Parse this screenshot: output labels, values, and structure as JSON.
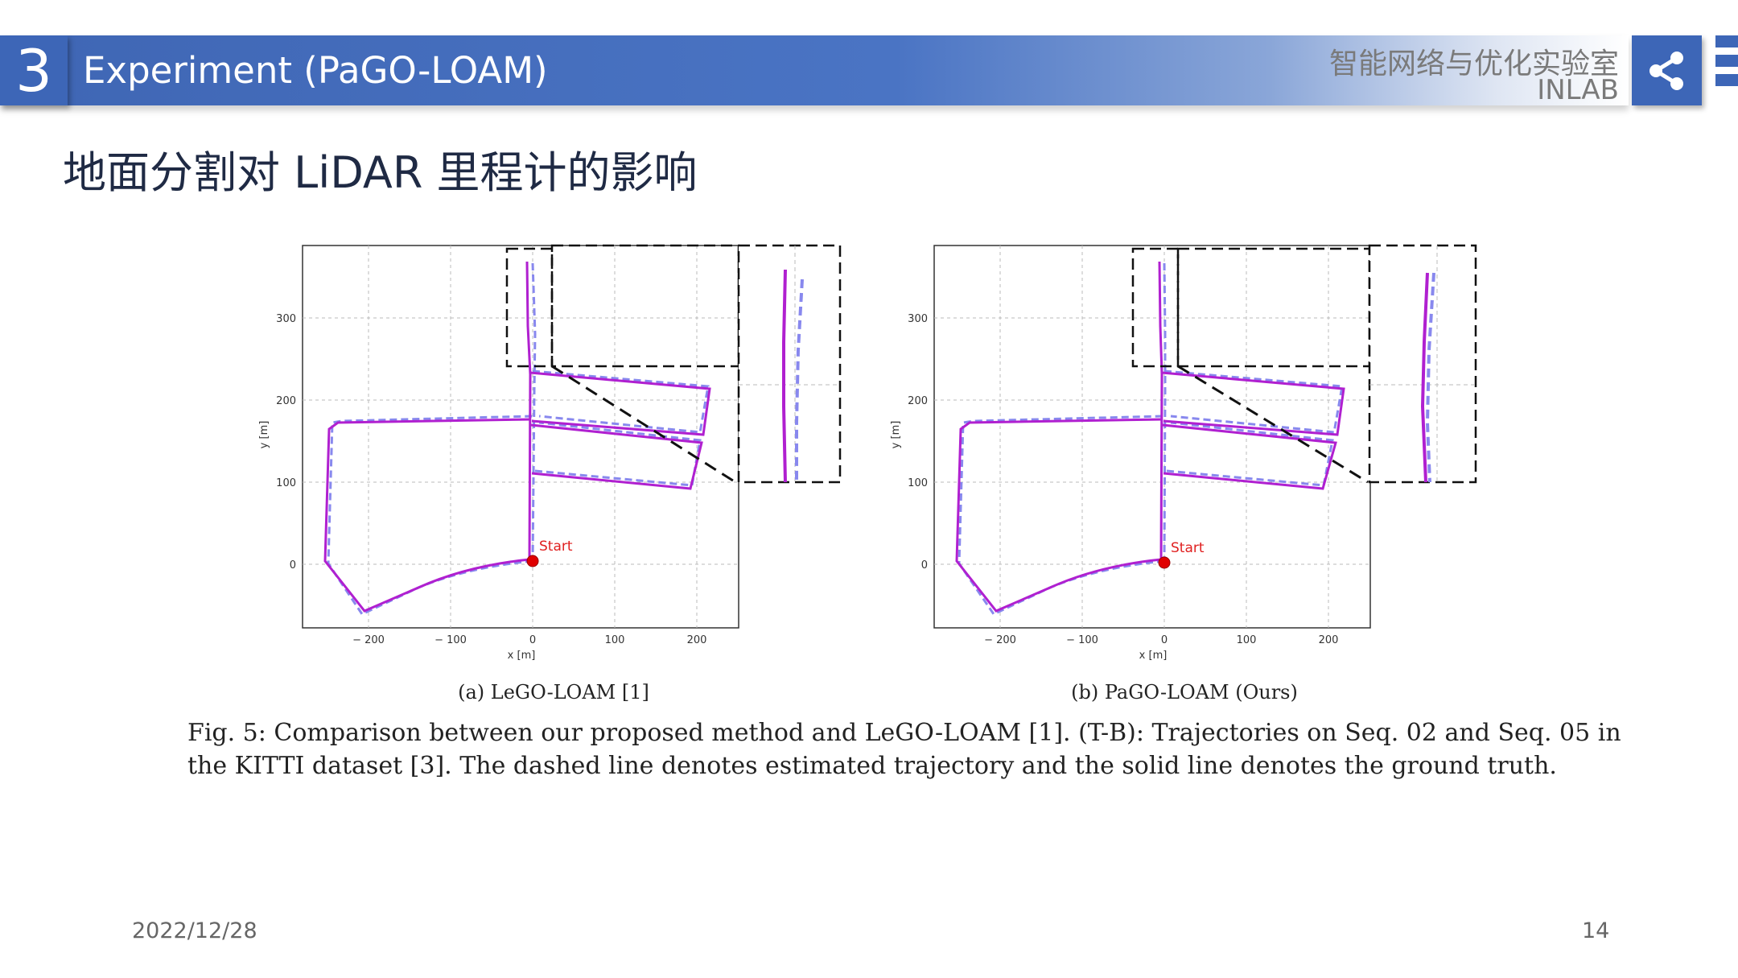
{
  "header": {
    "section_number": "3",
    "title": "Experiment (PaGO-LOAM)",
    "lab_name_cn": "智能网络与优化实验室",
    "lab_name_en": "INLAB",
    "share_icon": "share-icon",
    "menu_icon": "menu-icon"
  },
  "slide": {
    "subtitle": "地面分割对 LiDAR 里程计的影响"
  },
  "figure": {
    "panel_a": {
      "caption": "(a) LeGO-LOAM [1]",
      "start_label": "Start",
      "xlabel": "x [m]",
      "ylabel": "y [m]",
      "xticks": [
        "− 200",
        "− 100",
        "0",
        "100",
        "200"
      ],
      "yticks": [
        "300",
        "200",
        "100",
        "0"
      ]
    },
    "panel_b": {
      "caption": "(b) PaGO-LOAM (Ours)",
      "start_label": "Start",
      "xlabel": "x [m]",
      "ylabel": "y [m]",
      "xticks": [
        "− 200",
        "− 100",
        "0",
        "100",
        "200"
      ],
      "yticks": [
        "300",
        "200",
        "100",
        "0"
      ]
    },
    "caption_line1": "Fig. 5: Comparison between our proposed method and LeGO-LOAM [1]. (T-B): Trajectories on Seq. 02 and Seq. 05 in",
    "caption_line2": "the KITTI dataset [3]. The dashed line denotes estimated trajectory and the solid line denotes the ground truth."
  },
  "footer": {
    "date": "2022/12/28",
    "page_number": "14"
  },
  "colors": {
    "accent_blue": "#3d66b7",
    "ground_truth": "#b020d0",
    "estimated": "#8888ee",
    "start_marker": "#e00000"
  }
}
